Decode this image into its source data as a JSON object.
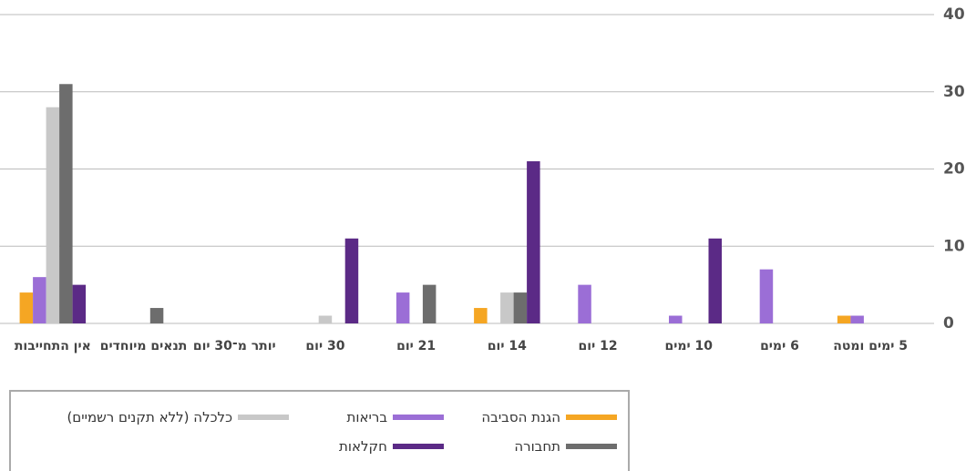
{
  "chart_data": {
    "type": "bar",
    "categories": [
      "5 ימים ומטה",
      "6 ימים",
      "10 ימים",
      "12 יום",
      "14 יום",
      "21 יום",
      "30 יום",
      "יותר מ־30 יום",
      "תנאים מיוחדים",
      "אין התחייבות"
    ],
    "series": [
      {
        "name": "הגנת הסביבה",
        "color": "#f5a623",
        "values": [
          1,
          0,
          0,
          0,
          2,
          0,
          0,
          0,
          0,
          4
        ]
      },
      {
        "name": "בריאות",
        "color": "#9b6ed6",
        "values": [
          1,
          7,
          1,
          5,
          0,
          4,
          0,
          0,
          0,
          6
        ]
      },
      {
        "name": "כלכלה (ללא תקנים רשמיים)",
        "color": "#c8c8c8",
        "values": [
          0,
          0,
          0,
          0,
          4,
          0,
          1,
          0,
          0,
          28
        ]
      },
      {
        "name": "תחבורה",
        "color": "#6d6d6d",
        "values": [
          0,
          0,
          0,
          0,
          4,
          5,
          0,
          0,
          2,
          31
        ]
      },
      {
        "name": "חקלאות",
        "color": "#5b2a86",
        "values": [
          0,
          0,
          11,
          0,
          21,
          0,
          11,
          0,
          0,
          5
        ]
      }
    ],
    "ylim": [
      0,
      40
    ],
    "yticks": [
      0,
      10,
      20,
      30,
      40
    ],
    "grid": true
  }
}
